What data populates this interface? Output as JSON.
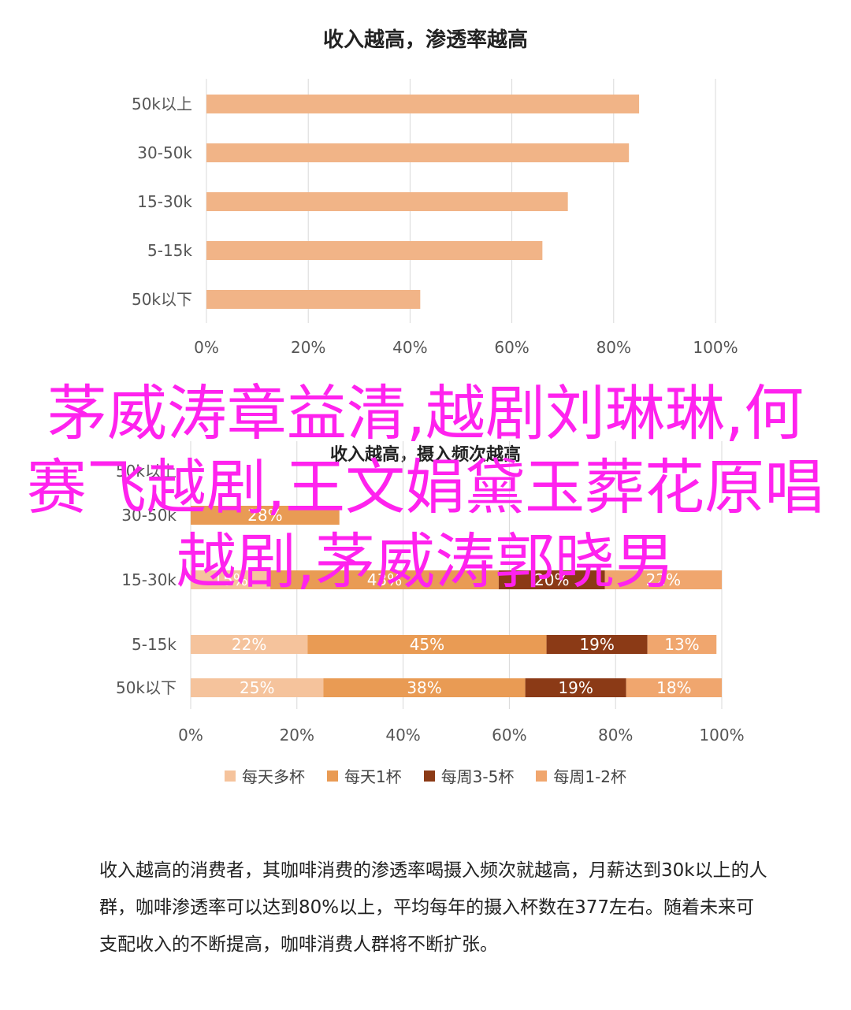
{
  "chart_data": [
    {
      "type": "bar",
      "orientation": "horizontal",
      "title": "收入越高，渗透率越高",
      "categories": [
        "50k以上",
        "30-50k",
        "15-30k",
        "5-15k",
        "50k以下"
      ],
      "values": [
        85,
        83,
        71,
        66,
        42
      ],
      "xlim": [
        0,
        100
      ],
      "xticks": [
        "0%",
        "20%",
        "40%",
        "60%",
        "80%",
        "100%"
      ],
      "grid": true,
      "color": "#f1b487"
    },
    {
      "type": "bar",
      "orientation": "horizontal",
      "stacked": true,
      "title": "收入越高，摄入频次越高",
      "categories": [
        "50k以上",
        "30-50k",
        "15-30k",
        "5-15k",
        "50k以下"
      ],
      "series": [
        {
          "name": "每天多杯",
          "values": [
            0,
            0,
            15,
            22,
            25
          ],
          "color": "#f5c39c"
        },
        {
          "name": "每天1杯",
          "values": [
            0,
            28,
            43,
            45,
            38
          ],
          "color": "#e99b54"
        },
        {
          "name": "每周3-5杯",
          "values": [
            0,
            0,
            20,
            19,
            19
          ],
          "color": "#8b3a16"
        },
        {
          "name": "每周1-2杯",
          "values": [
            0,
            0,
            22,
            13,
            18
          ],
          "color": "#f0a66e"
        }
      ],
      "labels": [
        [],
        [
          "",
          "28%",
          "",
          ""
        ],
        [
          "15%",
          "43%",
          "20%",
          "22%"
        ],
        [
          "22%",
          "45%",
          "19%",
          "13%"
        ],
        [
          "25%",
          "38%",
          "19%",
          "18%"
        ]
      ],
      "xlim": [
        0,
        100
      ],
      "xticks": [
        "0%",
        "20%",
        "40%",
        "60%",
        "80%",
        "100%"
      ],
      "grid": true,
      "legend_position": "bottom"
    }
  ],
  "overlay_text": "茅威涛章益清,越剧刘琳琳,何赛飞越剧,王文娟黛玉葬花原唱越剧,茅威涛郭晓男",
  "paragraph": "收入越高的消费者，其咖啡消费的渗透率喝摄入频次就越高，月薪达到30k以上的人群，咖啡渗透率可以达到80%以上，平均每年的摄入杯数在377左右。随着未来可支配收入的不断提高，咖啡消费人群将不断扩张。"
}
